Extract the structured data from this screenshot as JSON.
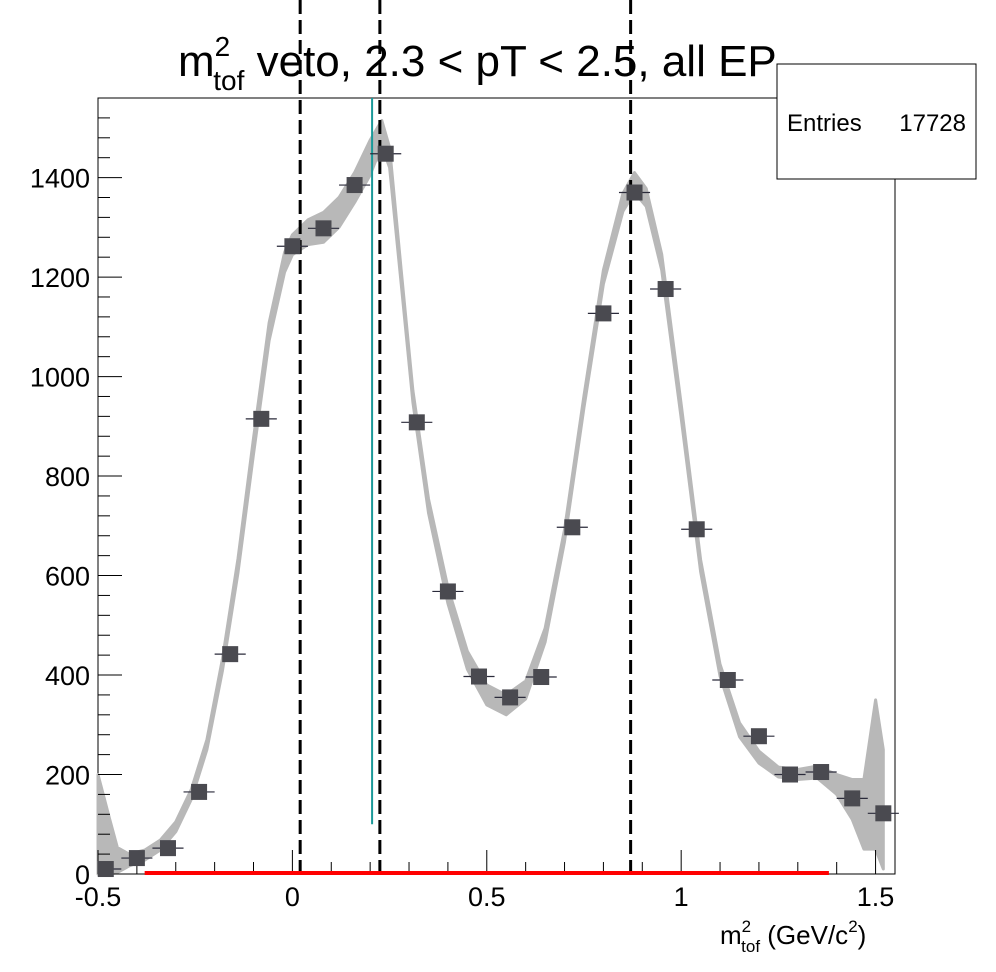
{
  "chart_data": {
    "type": "scatter",
    "title": {
      "main": "m",
      "sup": "2",
      "sub": "tof",
      "rest": " veto, 2.3 < pT < 2.5, all EP"
    },
    "xlabel": {
      "main": "m",
      "sup": "2",
      "sub": "tof",
      "rest_a": " (GeV/c",
      "rest_sup": "2",
      "rest_b": ")"
    },
    "ylabel": "",
    "xlim": [
      -0.5,
      1.55
    ],
    "ylim": [
      0,
      1560
    ],
    "x_ticks": [
      -0.5,
      0,
      0.5,
      1,
      1.5
    ],
    "x_tick_labels": [
      "-0.5",
      "0",
      "0.5",
      "1",
      "1.5"
    ],
    "y_ticks": [
      0,
      200,
      400,
      600,
      800,
      1000,
      1200,
      1400
    ],
    "y_tick_labels": [
      "0",
      "200",
      "400",
      "600",
      "800",
      "1000",
      "1200",
      "1400"
    ],
    "stats": {
      "label": "Entries",
      "value": "17728"
    },
    "series": [
      {
        "values_x": [
          -0.48,
          -0.4,
          -0.32,
          -0.24,
          -0.16,
          -0.08,
          0.0,
          0.08,
          0.16,
          0.24,
          0.32,
          0.4,
          0.48,
          0.56,
          0.64,
          0.72,
          0.8,
          0.88,
          0.96,
          1.04,
          1.12,
          1.2,
          1.28,
          1.36,
          1.44,
          1.52
        ],
        "values_y": [
          10,
          32,
          52,
          165,
          442,
          915,
          1262,
          1298,
          1385,
          1448,
          908,
          568,
          397,
          355,
          396,
          697,
          1127,
          1370,
          1176,
          693,
          390,
          277,
          200,
          205,
          152,
          122
        ],
        "color": "#4a4a50"
      }
    ],
    "fit_band": {
      "color": "#b8b8b8",
      "x": [
        -0.5,
        -0.47,
        -0.45,
        -0.42,
        -0.38,
        -0.34,
        -0.3,
        -0.26,
        -0.22,
        -0.18,
        -0.14,
        -0.1,
        -0.06,
        -0.02,
        0.0,
        0.04,
        0.08,
        0.12,
        0.16,
        0.2,
        0.23,
        0.25,
        0.28,
        0.31,
        0.35,
        0.4,
        0.45,
        0.5,
        0.55,
        0.6,
        0.65,
        0.7,
        0.75,
        0.8,
        0.85,
        0.88,
        0.91,
        0.95,
        1.0,
        1.05,
        1.1,
        1.15,
        1.2,
        1.25,
        1.3,
        1.35,
        1.4,
        1.44,
        1.47,
        1.5,
        1.52
      ],
      "center": [
        60,
        40,
        28,
        28,
        38,
        58,
        95,
        160,
        260,
        420,
        620,
        860,
        1090,
        1230,
        1265,
        1290,
        1300,
        1330,
        1380,
        1440,
        1490,
        1440,
        1200,
        960,
        740,
        560,
        430,
        360,
        340,
        370,
        480,
        680,
        950,
        1200,
        1350,
        1390,
        1360,
        1230,
        930,
        620,
        410,
        290,
        235,
        205,
        200,
        205,
        180,
        150,
        120,
        200,
        130
      ],
      "half_width": [
        140,
        70,
        25,
        12,
        10,
        10,
        10,
        10,
        10,
        12,
        14,
        16,
        18,
        20,
        20,
        25,
        30,
        30,
        30,
        35,
        25,
        20,
        14,
        12,
        14,
        16,
        18,
        20,
        20,
        18,
        14,
        12,
        12,
        14,
        18,
        20,
        18,
        16,
        14,
        12,
        12,
        14,
        12,
        10,
        10,
        12,
        20,
        40,
        70,
        150,
        120
      ]
    },
    "vlines": [
      {
        "x": 0.02,
        "y_top": 1560,
        "style": "dashed",
        "color": "#000000"
      },
      {
        "x": 0.225,
        "y_top": 1560,
        "style": "dashed",
        "color": "#000000"
      },
      {
        "x": 0.87,
        "y_top": 1560,
        "style": "dashed",
        "color": "#000000"
      },
      {
        "x": 0.205,
        "y_bottom": 100,
        "y_top": 1560,
        "style": "solid",
        "color": "#1a9999"
      }
    ],
    "baseline_segment": {
      "x_start": -0.38,
      "x_end": 1.38,
      "y": 0,
      "color": "#ff0000"
    }
  }
}
